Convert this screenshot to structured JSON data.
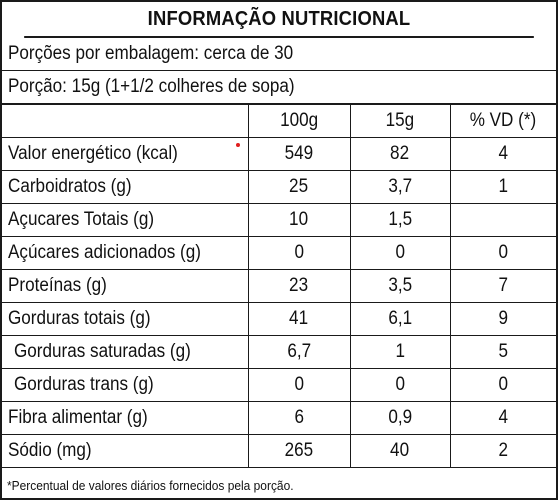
{
  "label": {
    "title": "INFORMAÇÃO NUTRICIONAL",
    "servings_per_package": "Porções por embalagem: cerca de 30",
    "serving_size": "Porção: 15g (1+1/2 colheres de sopa)",
    "columns": [
      "",
      "100g",
      "15g",
      "% VD (*)"
    ],
    "rows": [
      {
        "name": "Valor energético (kcal)",
        "v100": "549",
        "v15": "82",
        "vd": "4"
      },
      {
        "name": "Carboidratos (g)",
        "v100": "25",
        "v15": "3,7",
        "vd": "1"
      },
      {
        "name": "Açucares Totais (g)",
        "v100": "10",
        "v15": "1,5",
        "vd": ""
      },
      {
        "name": "Açúcares adicionados (g)",
        "v100": "0",
        "v15": "0",
        "vd": "0"
      },
      {
        "name": "Proteínas (g)",
        "v100": "23",
        "v15": "3,5",
        "vd": "7"
      },
      {
        "name": "Gorduras totais (g)",
        "v100": "41",
        "v15": "6,1",
        "vd": "9"
      },
      {
        "name": "Gorduras saturadas (g)",
        "v100": "6,7",
        "v15": "1",
        "vd": "5"
      },
      {
        "name": "Gorduras trans (g)",
        "v100": "0",
        "v15": "0",
        "vd": "0"
      },
      {
        "name": "Fibra alimentar (g)",
        "v100": "6",
        "v15": "0,9",
        "vd": "4"
      },
      {
        "name": "Sódio (mg)",
        "v100": "265",
        "v15": "40",
        "vd": "2"
      }
    ],
    "footnote": "*Percentual de valores diários fornecidos pela porção.",
    "marker_color": "#e01e1e"
  }
}
